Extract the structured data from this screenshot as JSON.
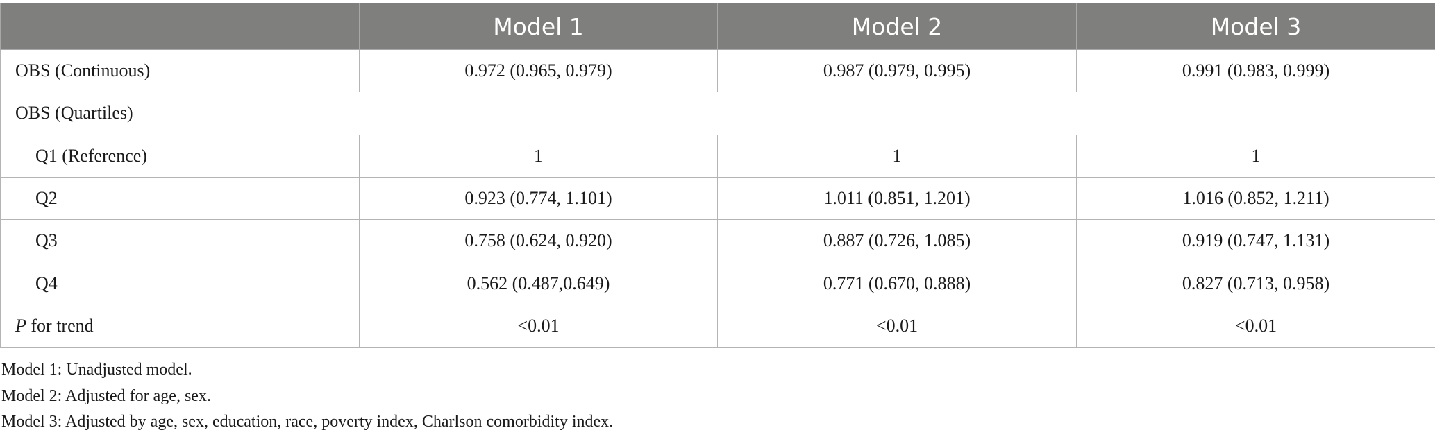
{
  "header": {
    "blank": "",
    "columns": [
      "Model 1",
      "Model 2",
      "Model 3"
    ]
  },
  "rows": {
    "continuous": {
      "label": "OBS (Continuous)",
      "values": [
        "0.972 (0.965, 0.979)",
        "0.987 (0.979, 0.995)",
        "0.991 (0.983, 0.999)"
      ]
    },
    "quartiles_header": {
      "label": "OBS (Quartiles)"
    },
    "q1": {
      "label": "Q1 (Reference)",
      "values": [
        "1",
        "1",
        "1"
      ]
    },
    "q2": {
      "label": "Q2",
      "values": [
        "0.923 (0.774, 1.101)",
        "1.011 (0.851, 1.201)",
        "1.016 (0.852, 1.211)"
      ]
    },
    "q3": {
      "label": "Q3",
      "values": [
        "0.758 (0.624, 0.920)",
        "0.887 (0.726, 1.085)",
        "0.919 (0.747, 1.131)"
      ]
    },
    "q4": {
      "label": "Q4",
      "values": [
        "0.562 (0.487,0.649)",
        "0.771 (0.670, 0.888)",
        "0.827 (0.713, 0.958)"
      ]
    },
    "trend": {
      "label_italic": "P",
      "label_rest": " for trend",
      "values": [
        "<0.01",
        "<0.01",
        "<0.01"
      ]
    }
  },
  "notes": [
    "Model 1: Unadjusted model.",
    "Model 2: Adjusted for age, sex.",
    "Model 3: Adjusted by age, sex, education, race, poverty index, Charlson comorbidity index."
  ]
}
